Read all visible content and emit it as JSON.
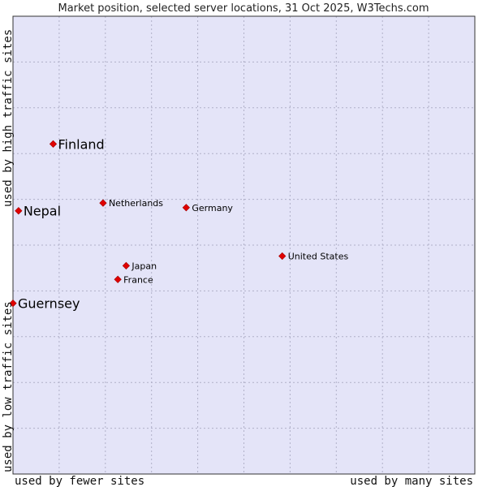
{
  "chart_data": {
    "type": "scatter",
    "title": "Market position, selected server locations, 31 Oct 2025, W3Techs.com",
    "xlabel_left": "used by fewer sites",
    "xlabel_right": "used by many sites",
    "ylabel_bottom": "used by low traffic sites",
    "ylabel_top": "used by high traffic sites",
    "xlim": [
      0,
      100
    ],
    "ylim": [
      0,
      100
    ],
    "grid": true,
    "colors": {
      "plot_bg": "#e4e4f8",
      "grid": "#b0b0c8",
      "marker": "#e00000",
      "border": "#333333"
    },
    "points": [
      {
        "label": "Finland",
        "x": 8.7,
        "y": 72.1,
        "emphasis": true
      },
      {
        "label": "Nepal",
        "x": 1.2,
        "y": 57.5,
        "emphasis": true
      },
      {
        "label": "Guernsey",
        "x": 0.0,
        "y": 37.3,
        "emphasis": true
      },
      {
        "label": "Netherlands",
        "x": 19.5,
        "y": 59.2,
        "emphasis": false
      },
      {
        "label": "Germany",
        "x": 37.5,
        "y": 58.2,
        "emphasis": false
      },
      {
        "label": "United States",
        "x": 58.3,
        "y": 47.6,
        "emphasis": false
      },
      {
        "label": "Japan",
        "x": 24.5,
        "y": 45.5,
        "emphasis": false
      },
      {
        "label": "France",
        "x": 22.7,
        "y": 42.5,
        "emphasis": false
      }
    ]
  }
}
